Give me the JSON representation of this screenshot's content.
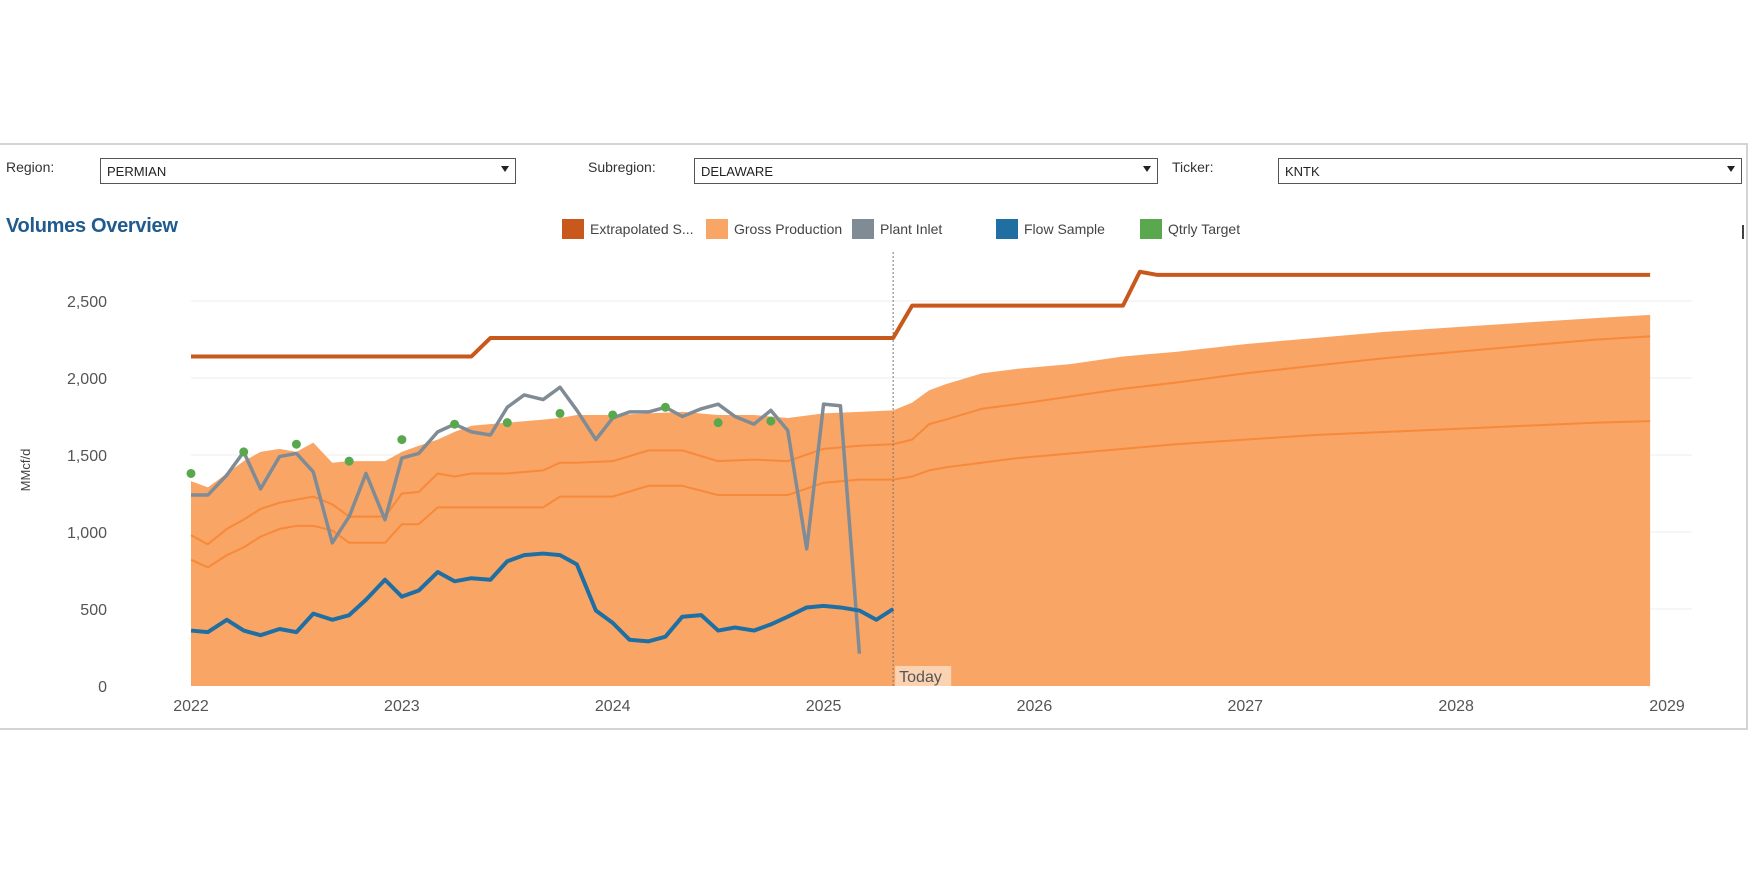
{
  "filters": {
    "region": {
      "label": "Region:",
      "value": "PERMIAN"
    },
    "subregion": {
      "label": "Subregion:",
      "value": "DELAWARE"
    },
    "ticker": {
      "label": "Ticker:",
      "value": "KNTK"
    }
  },
  "colors": {
    "extrapolated": "#c9581c",
    "gross": "#f9a566",
    "gross_line": "#f7893a",
    "plant_inlet": "#7f8c96",
    "flow_sample": "#1f6fa3",
    "qtrly_target": "#5aa84d",
    "today_line": "#777777",
    "today_label_bg": "#fbd3b2",
    "grid": "#eeeeee"
  },
  "chart_data": {
    "type": "area",
    "title": "Volumes Overview",
    "ylabel": "MMcf/d",
    "xlabel": "",
    "ylim": [
      0,
      2800
    ],
    "y_ticks": [
      "0",
      "500",
      "1,000",
      "1,500",
      "2,000",
      "2,500"
    ],
    "y_tick_values": [
      0,
      500,
      1000,
      1500,
      2000,
      2500
    ],
    "x_ticks": [
      "2022",
      "2023",
      "2024",
      "2025",
      "2026",
      "2027",
      "2028",
      "2029"
    ],
    "x_tick_values": [
      2022,
      2023,
      2024,
      2025,
      2026,
      2027,
      2028,
      2029
    ],
    "xlim": [
      2022,
      2029
    ],
    "today": {
      "x": 2025.33,
      "label": "Today"
    },
    "legend": [
      {
        "key": "extrapolated",
        "label": "Extrapolated S..."
      },
      {
        "key": "gross",
        "label": "Gross Production"
      },
      {
        "key": "plant_inlet",
        "label": "Plant Inlet"
      },
      {
        "key": "flow_sample",
        "label": "Flow Sample"
      },
      {
        "key": "qtrly_target",
        "label": "Qtrly Target"
      }
    ],
    "extrapolated": {
      "x": [
        2022.0,
        2023.33,
        2023.42,
        2025.33,
        2025.42,
        2026.42,
        2026.5,
        2026.58,
        2028.92
      ],
      "y": [
        2140,
        2140,
        2260,
        2260,
        2470,
        2470,
        2690,
        2670,
        2670
      ]
    },
    "gross_production_upper": {
      "x": [
        2022.0,
        2022.08,
        2022.17,
        2022.25,
        2022.33,
        2022.42,
        2022.5,
        2022.58,
        2022.67,
        2022.75,
        2022.83,
        2022.92,
        2023.0,
        2023.08,
        2023.17,
        2023.25,
        2023.33,
        2023.5,
        2023.67,
        2023.75,
        2023.83,
        2024.0,
        2024.17,
        2024.33,
        2024.5,
        2024.67,
        2024.83,
        2025.0,
        2025.17,
        2025.33,
        2025.42,
        2025.5,
        2025.58,
        2025.75,
        2025.92,
        2026.17,
        2026.42,
        2026.67,
        2027.0,
        2027.33,
        2027.67,
        2028.0,
        2028.33,
        2028.67,
        2028.92
      ],
      "y": [
        1330,
        1290,
        1380,
        1460,
        1520,
        1540,
        1520,
        1580,
        1450,
        1460,
        1460,
        1460,
        1520,
        1560,
        1600,
        1650,
        1690,
        1710,
        1730,
        1740,
        1760,
        1760,
        1770,
        1780,
        1760,
        1760,
        1740,
        1770,
        1780,
        1790,
        1840,
        1920,
        1960,
        2030,
        2060,
        2090,
        2140,
        2170,
        2220,
        2260,
        2300,
        2330,
        2360,
        2390,
        2410
      ]
    },
    "gross_production_mid": {
      "x": [
        2022.0,
        2022.08,
        2022.17,
        2022.25,
        2022.33,
        2022.42,
        2022.5,
        2022.58,
        2022.67,
        2022.75,
        2022.83,
        2022.92,
        2023.0,
        2023.08,
        2023.17,
        2023.25,
        2023.33,
        2023.5,
        2023.67,
        2023.75,
        2023.83,
        2024.0,
        2024.17,
        2024.33,
        2024.5,
        2024.67,
        2024.83,
        2025.0,
        2025.17,
        2025.33,
        2025.42,
        2025.5,
        2025.58,
        2025.75,
        2025.92,
        2026.17,
        2026.42,
        2026.67,
        2027.0,
        2027.33,
        2027.67,
        2028.0,
        2028.33,
        2028.67,
        2028.92
      ],
      "y": [
        980,
        920,
        1020,
        1080,
        1150,
        1190,
        1210,
        1230,
        1180,
        1100,
        1100,
        1100,
        1250,
        1260,
        1380,
        1360,
        1380,
        1380,
        1400,
        1450,
        1450,
        1460,
        1530,
        1530,
        1460,
        1470,
        1460,
        1540,
        1560,
        1570,
        1600,
        1700,
        1730,
        1800,
        1830,
        1880,
        1930,
        1970,
        2030,
        2080,
        2130,
        2170,
        2210,
        2250,
        2270
      ]
    },
    "gross_production_lower": {
      "x": [
        2022.0,
        2022.08,
        2022.17,
        2022.25,
        2022.33,
        2022.42,
        2022.5,
        2022.58,
        2022.67,
        2022.75,
        2022.83,
        2022.92,
        2023.0,
        2023.08,
        2023.17,
        2023.25,
        2023.33,
        2023.5,
        2023.67,
        2023.75,
        2023.83,
        2024.0,
        2024.17,
        2024.33,
        2024.5,
        2024.67,
        2024.83,
        2025.0,
        2025.17,
        2025.33,
        2025.42,
        2025.5,
        2025.58,
        2025.75,
        2025.92,
        2026.17,
        2026.42,
        2026.67,
        2027.0,
        2027.33,
        2027.67,
        2028.0,
        2028.33,
        2028.67,
        2028.92
      ],
      "y": [
        820,
        770,
        850,
        900,
        970,
        1020,
        1040,
        1040,
        1010,
        930,
        930,
        930,
        1050,
        1050,
        1160,
        1160,
        1160,
        1160,
        1160,
        1230,
        1230,
        1230,
        1300,
        1300,
        1240,
        1240,
        1240,
        1320,
        1340,
        1340,
        1360,
        1400,
        1420,
        1450,
        1480,
        1510,
        1540,
        1570,
        1600,
        1630,
        1650,
        1670,
        1690,
        1710,
        1720
      ]
    },
    "plant_inlet": {
      "x": [
        2022.0,
        2022.08,
        2022.17,
        2022.25,
        2022.33,
        2022.42,
        2022.5,
        2022.58,
        2022.67,
        2022.75,
        2022.83,
        2022.92,
        2023.0,
        2023.08,
        2023.17,
        2023.25,
        2023.33,
        2023.42,
        2023.5,
        2023.58,
        2023.67,
        2023.75,
        2023.83,
        2023.92,
        2024.0,
        2024.08,
        2024.17,
        2024.25,
        2024.33,
        2024.42,
        2024.5,
        2024.58,
        2024.67,
        2024.75,
        2024.83,
        2024.92,
        2025.0,
        2025.08,
        2025.17
      ],
      "y": [
        1240,
        1240,
        1370,
        1520,
        1280,
        1490,
        1510,
        1390,
        930,
        1100,
        1380,
        1080,
        1480,
        1510,
        1650,
        1700,
        1650,
        1630,
        1810,
        1890,
        1860,
        1940,
        1790,
        1600,
        1740,
        1780,
        1780,
        1810,
        1750,
        1800,
        1830,
        1750,
        1700,
        1790,
        1660,
        890,
        1830,
        1820,
        210
      ]
    },
    "flow_sample": {
      "x": [
        2022.0,
        2022.08,
        2022.17,
        2022.25,
        2022.33,
        2022.42,
        2022.5,
        2022.58,
        2022.67,
        2022.75,
        2022.83,
        2022.92,
        2023.0,
        2023.08,
        2023.17,
        2023.25,
        2023.33,
        2023.42,
        2023.5,
        2023.58,
        2023.67,
        2023.75,
        2023.83,
        2023.92,
        2024.0,
        2024.08,
        2024.17,
        2024.25,
        2024.33,
        2024.42,
        2024.5,
        2024.58,
        2024.67,
        2024.75,
        2024.83,
        2024.92,
        2025.0,
        2025.08,
        2025.17,
        2025.25,
        2025.33
      ],
      "y": [
        360,
        350,
        430,
        360,
        330,
        370,
        350,
        470,
        430,
        460,
        560,
        690,
        580,
        620,
        740,
        680,
        700,
        690,
        810,
        850,
        860,
        850,
        790,
        490,
        410,
        300,
        290,
        320,
        450,
        460,
        360,
        380,
        360,
        400,
        450,
        510,
        520,
        510,
        490,
        430,
        500
      ]
    },
    "qtrly_target": {
      "x": [
        2022.0,
        2022.25,
        2022.5,
        2022.75,
        2023.0,
        2023.25,
        2023.5,
        2023.75,
        2024.0,
        2024.25,
        2024.5,
        2024.75
      ],
      "y": [
        1380,
        1520,
        1570,
        1460,
        1600,
        1700,
        1710,
        1770,
        1760,
        1810,
        1710,
        1720
      ]
    }
  }
}
